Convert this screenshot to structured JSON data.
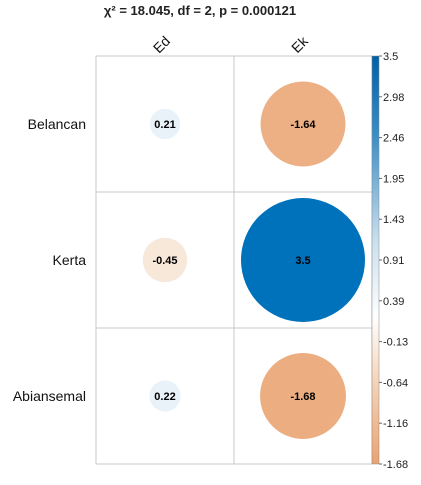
{
  "chart_data": {
    "type": "heatmap",
    "title": "χ² = 18.045, df = 2, p = 0.000121",
    "columns": [
      "Ed",
      "Ek"
    ],
    "rows": [
      "Belancan",
      "Kerta",
      "Abiansemal"
    ],
    "values": [
      [
        0.21,
        -1.64
      ],
      [
        -0.45,
        3.5
      ],
      [
        0.22,
        -1.68
      ]
    ],
    "cell_labels": [
      [
        "0.21",
        "-1.64"
      ],
      [
        "-0.45",
        "3.5"
      ],
      [
        "0.22",
        "-1.68"
      ]
    ],
    "color_range": [
      -1.68,
      3.5
    ],
    "legend_ticks": [
      "3.5",
      "2.98",
      "2.46",
      "1.95",
      "1.43",
      "0.91",
      "0.39",
      "-0.13",
      "-0.64",
      "-1.16",
      "-1.68"
    ],
    "legend_placement": "right",
    "grid": true
  }
}
